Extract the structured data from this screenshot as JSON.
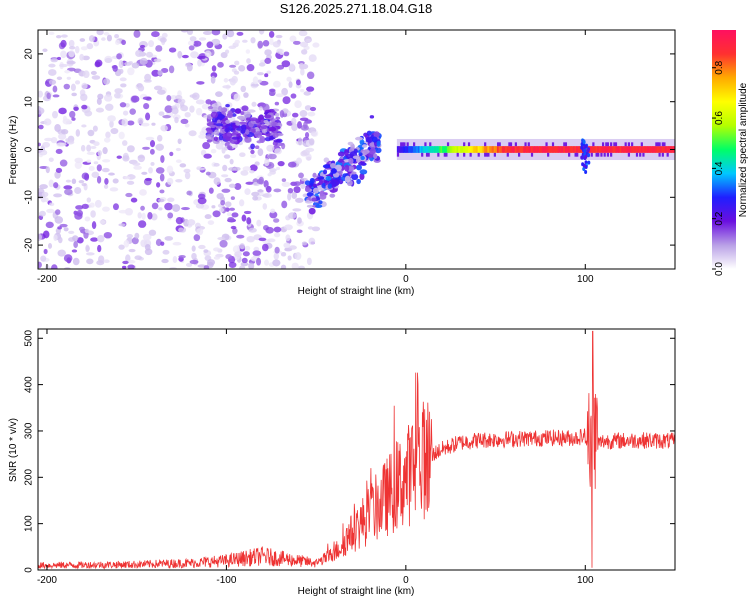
{
  "title": "S126.2025.271.18.04.G18",
  "chart_data": [
    {
      "type": "heatmap",
      "name": "spectrogram",
      "xlabel": "Height of straight line (km)",
      "ylabel": "Frequency (Hz)",
      "xlim": [
        -205,
        150
      ],
      "ylim": [
        -25,
        25
      ],
      "xticks": [
        -200,
        -100,
        0,
        100
      ],
      "xtick_labels": [
        "-200",
        "-100",
        "0",
        "100"
      ],
      "yticks": [
        -20,
        -10,
        0,
        10,
        20
      ],
      "ytick_labels": [
        "-20",
        "-10",
        "0",
        "10",
        "20"
      ],
      "colorbar": {
        "label": "Normalized spectral amplitude",
        "range": [
          0,
          0.95
        ],
        "ticks": [
          0.0,
          0.2,
          0.4,
          0.6,
          0.8
        ],
        "tick_labels": [
          "0.0",
          "0.2",
          "0.4",
          "0.6",
          "0.8"
        ],
        "colors": [
          "#ffffff",
          "#b9a0e6",
          "#6a0fe0",
          "#1f1fff",
          "#00c8ff",
          "#00ff66",
          "#b4ff00",
          "#ffff00",
          "#ffaa00",
          "#ff3030",
          "#ff1060"
        ]
      },
      "regions": [
        {
          "name": "noise",
          "x": [
            -205,
            -50
          ],
          "freq_spread": 25,
          "amplitude": 0.12
        },
        {
          "name": "onset",
          "x": [
            -110,
            -70
          ],
          "freq_center": 5,
          "freq_spread": 6,
          "amplitude": 0.2
        },
        {
          "name": "rising-trace",
          "x": [
            -55,
            -15
          ],
          "freq_start": -10,
          "freq_end": 2,
          "amplitude": 0.3
        },
        {
          "name": "carrier-line",
          "x": [
            -5,
            150
          ],
          "freq_center": 0,
          "amplitude": 0.88
        },
        {
          "name": "disturbance",
          "x": [
            98,
            102
          ],
          "freq_range": [
            -5,
            2
          ],
          "amplitude": 0.3
        }
      ]
    },
    {
      "type": "line",
      "name": "snr",
      "xlabel": "Height of straight line (km)",
      "ylabel": "SNR (10 * v/v)",
      "xlim": [
        -205,
        150
      ],
      "ylim": [
        0,
        520
      ],
      "xticks": [
        -200,
        -100,
        0,
        100
      ],
      "xtick_labels": [
        "-200",
        "-100",
        "0",
        "100"
      ],
      "yticks": [
        0,
        100,
        200,
        300,
        400,
        500
      ],
      "ytick_labels": [
        "0",
        "100",
        "200",
        "300",
        "400",
        "500"
      ],
      "color": "#ee3333",
      "series": [
        {
          "name": "SNR envelope",
          "x": [
            -205,
            -150,
            -120,
            -100,
            -80,
            -60,
            -50,
            -40,
            -30,
            -20,
            -10,
            0,
            10,
            20,
            30,
            40,
            60,
            80,
            95,
            100,
            104,
            106,
            110,
            130,
            150
          ],
          "values": [
            10,
            12,
            15,
            20,
            30,
            20,
            15,
            35,
            80,
            120,
            160,
            200,
            240,
            260,
            275,
            280,
            283,
            285,
            285,
            290,
            200,
            270,
            278,
            280,
            278
          ]
        }
      ],
      "annotations": [
        {
          "x": 104,
          "peak": 515,
          "trough": 5
        }
      ]
    }
  ]
}
